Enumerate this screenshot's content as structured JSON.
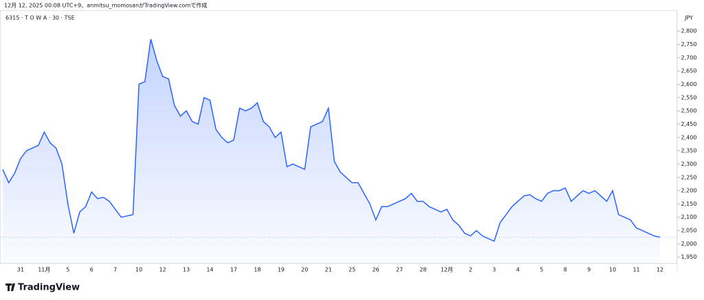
{
  "caption": "12月 12, 2025 00:08 UTC+9、anmitsu_momosanがTradingView.comで作成",
  "brand": "TradingView",
  "chart_data": {
    "type": "area",
    "title": "6315 · T O W A · 30 · TSE",
    "currency": "JPY",
    "color": "#2962ff",
    "categories": [
      null,
      null,
      null,
      "31",
      null,
      null,
      null,
      "11月",
      null,
      null,
      null,
      "5",
      null,
      null,
      null,
      "6",
      null,
      null,
      null,
      "7",
      null,
      null,
      null,
      "10",
      null,
      null,
      null,
      "12",
      null,
      null,
      null,
      "13",
      null,
      null,
      null,
      "14",
      null,
      null,
      null,
      "17",
      null,
      null,
      null,
      "18",
      null,
      null,
      null,
      "19",
      null,
      null,
      null,
      "20",
      null,
      null,
      null,
      "21",
      null,
      null,
      null,
      "25",
      null,
      null,
      null,
      "26",
      null,
      null,
      null,
      "27",
      null,
      null,
      null,
      "28",
      null,
      null,
      null,
      "12月",
      null,
      null,
      null,
      "2",
      null,
      null,
      null,
      "3",
      null,
      null,
      null,
      "4",
      null,
      null,
      null,
      "5",
      null,
      null,
      null,
      "8",
      null,
      null,
      null,
      "9",
      null,
      null,
      null,
      "10",
      null,
      null,
      null,
      "11",
      null,
      null,
      null,
      "12"
    ],
    "values": [
      2280,
      2230,
      2265,
      2320,
      2350,
      2360,
      2370,
      2420,
      2380,
      2360,
      2300,
      2150,
      2040,
      2120,
      2140,
      2195,
      2170,
      2175,
      2160,
      2130,
      2100,
      2105,
      2110,
      2600,
      2610,
      2770,
      2690,
      2630,
      2620,
      2520,
      2480,
      2500,
      2460,
      2450,
      2550,
      2540,
      2430,
      2400,
      2380,
      2390,
      2510,
      2500,
      2510,
      2530,
      2460,
      2440,
      2400,
      2420,
      2290,
      2300,
      2290,
      2280,
      2440,
      2450,
      2460,
      2510,
      2310,
      2270,
      2250,
      2230,
      2230,
      2190,
      2150,
      2090,
      2140,
      2140,
      2150,
      2160,
      2170,
      2190,
      2160,
      2160,
      2140,
      2130,
      2120,
      2130,
      2090,
      2070,
      2040,
      2030,
      2050,
      2030,
      2020,
      2010,
      2080,
      2110,
      2140,
      2160,
      2180,
      2185,
      2170,
      2160,
      2190,
      2200,
      2200,
      2210,
      2160,
      2180,
      2200,
      2190,
      2200,
      2180,
      2160,
      2200,
      2110,
      2100,
      2090,
      2060,
      2050,
      2040,
      2030,
      2025
    ],
    "ylim": [
      1895,
      2865
    ],
    "yticks": [
      {
        "value": 1950,
        "label": "1,950"
      },
      {
        "value": 2000,
        "label": "2,000"
      },
      {
        "value": 2050,
        "label": "2,050"
      },
      {
        "value": 2100,
        "label": "2,100"
      },
      {
        "value": 2150,
        "label": "2,150"
      },
      {
        "value": 2200,
        "label": "2,200"
      },
      {
        "value": 2250,
        "label": "2,250"
      },
      {
        "value": 2300,
        "label": "2,300"
      },
      {
        "value": 2350,
        "label": "2,350"
      },
      {
        "value": 2400,
        "label": "2,400"
      },
      {
        "value": 2450,
        "label": "2,450"
      },
      {
        "value": 2500,
        "label": "2,500"
      },
      {
        "value": 2550,
        "label": "2,550"
      },
      {
        "value": 2600,
        "label": "2,600"
      },
      {
        "value": 2650,
        "label": "2,650"
      },
      {
        "value": 2700,
        "label": "2,700"
      },
      {
        "value": 2750,
        "label": "2,750"
      },
      {
        "value": 2800,
        "label": "2,800"
      }
    ]
  }
}
